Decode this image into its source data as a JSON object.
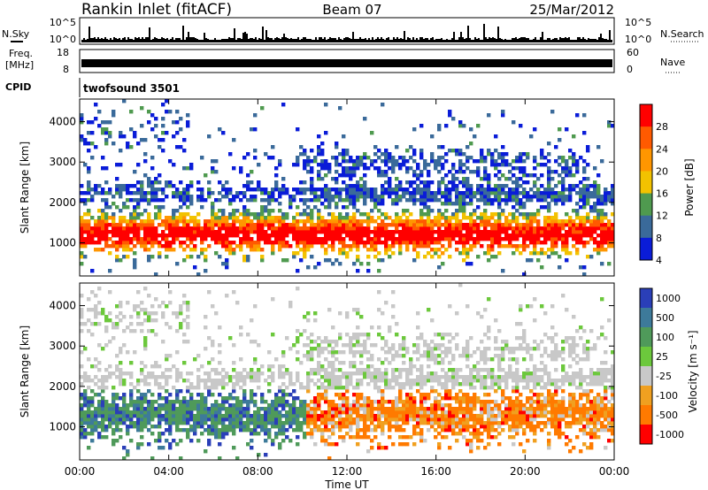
{
  "header": {
    "station": "Rankin Inlet (fitACF)",
    "beam": "Beam 07",
    "date": "25/Mar/2012"
  },
  "noise_panel": {
    "left_label": "N.Sky",
    "right_label": "N.Search",
    "left_ticks": [
      "10^5",
      "10^0"
    ],
    "right_ticks": [
      "10^5",
      "10^0"
    ]
  },
  "freq_panel": {
    "left_label_1": "Freq.",
    "left_label_2": "[MHz]",
    "right_label": "Nave",
    "left_ticks": [
      "18",
      "8"
    ],
    "right_ticks": [
      "60",
      "0"
    ]
  },
  "cpid": {
    "label": "CPID",
    "program": "twofsound 3501"
  },
  "chart_data": [
    {
      "type": "heatmap",
      "parameter": "power",
      "ylabel": "Slant Range [km]",
      "ylim": [
        180,
        4560
      ],
      "yticks": [
        "1000",
        "2000",
        "3000",
        "4000"
      ],
      "colorbar_label": "Power [dB]",
      "colorbar_ticks": [
        "28",
        "24",
        "20",
        "16",
        "12",
        "8",
        "4"
      ],
      "colors": [
        "#ff0000",
        "#ff5a00",
        "#ff9600",
        "#f2c200",
        "#4f9a4f",
        "#3a6a9a",
        "#0a1cd8"
      ]
    },
    {
      "type": "heatmap",
      "parameter": "velocity",
      "ylabel": "Slant Range [km]",
      "ylim": [
        180,
        4560
      ],
      "yticks": [
        "1000",
        "2000",
        "3000",
        "4000"
      ],
      "colorbar_label": "Velocity [m s⁻¹]",
      "colorbar_ticks": [
        "1000",
        "500",
        "100",
        "25",
        "-25",
        "-100",
        "-500",
        "-1000"
      ],
      "colors": [
        "#2a3fb8",
        "#3d7a9a",
        "#4f9a5a",
        "#6cc83c",
        "#c8c8c8",
        "#f0a020",
        "#ff7a00",
        "#ff0000"
      ]
    }
  ],
  "time_axis": {
    "xlabel": "Time UT",
    "ticks": [
      "00:00",
      "04:00",
      "08:00",
      "12:00",
      "16:00",
      "20:00",
      "00:00"
    ]
  }
}
